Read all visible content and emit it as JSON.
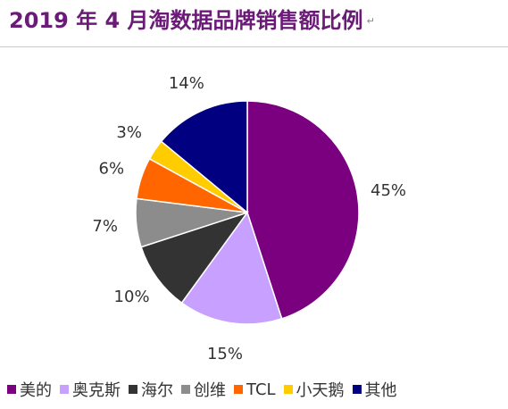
{
  "header": {
    "title": "2019 年 4 月淘数据品牌销售额比例",
    "mark": "↵"
  },
  "chart_data": {
    "type": "pie",
    "title": "2019 年 4 月淘数据品牌销售额比例",
    "unit": "%",
    "slices": [
      {
        "name": "美的",
        "value": 45,
        "label": "45%",
        "color": "#7a0080"
      },
      {
        "name": "奥克斯",
        "value": 15,
        "label": "15%",
        "color": "#c8a0ff"
      },
      {
        "name": "海尔",
        "value": 10,
        "label": "10%",
        "color": "#333333"
      },
      {
        "name": "创维",
        "value": 7,
        "label": "7%",
        "color": "#8c8c8c"
      },
      {
        "name": "TCL",
        "value": 6,
        "label": "6%",
        "color": "#ff6600"
      },
      {
        "name": "小天鹅",
        "value": 3,
        "label": "3%",
        "color": "#ffcc00"
      },
      {
        "name": "其他",
        "value": 14,
        "label": "14%",
        "color": "#000080"
      }
    ],
    "start": "12 o'clock",
    "direction": "clockwise",
    "legend_position": "bottom"
  }
}
